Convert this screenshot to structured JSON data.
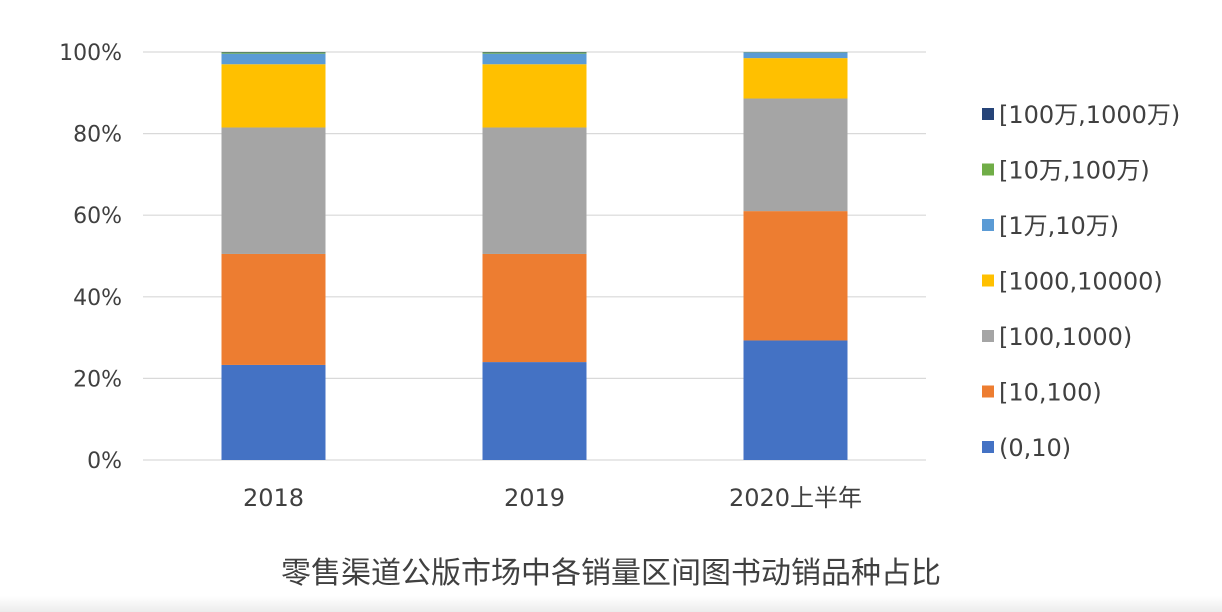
{
  "chart_data": {
    "type": "bar",
    "stacked": true,
    "categories": [
      "2018",
      "2019",
      "2020上半年"
    ],
    "series": [
      {
        "name": "(0,10)",
        "color": "#4472C4",
        "values": [
          23.3,
          24.0,
          29.3
        ]
      },
      {
        "name": "[10,100)",
        "color": "#ED7D31",
        "values": [
          27.2,
          26.5,
          31.7
        ]
      },
      {
        "name": "[100,1000)",
        "color": "#A5A5A5",
        "values": [
          31.0,
          31.0,
          27.6
        ]
      },
      {
        "name": "[1000,10000)",
        "color": "#FFC000",
        "values": [
          15.5,
          15.5,
          9.9
        ]
      },
      {
        "name": "[1万,10万)",
        "color": "#5B9BD5",
        "values": [
          2.6,
          2.6,
          1.4
        ]
      },
      {
        "name": "[10万,100万)",
        "color": "#70AD47",
        "values": [
          0.3,
          0.3,
          0.08
        ]
      },
      {
        "name": "[100万,1000万)",
        "color": "#264478",
        "values": [
          0.1,
          0.1,
          0.02
        ]
      }
    ],
    "y_tick_labels": [
      "0%",
      "20%",
      "40%",
      "60%",
      "80%",
      "100%"
    ],
    "ylim": [
      0,
      100
    ],
    "grid": true,
    "legend_position": "right",
    "legend_order": "reversed"
  },
  "caption": "零售渠道公版市场中各销量区间图书动销品种占比"
}
